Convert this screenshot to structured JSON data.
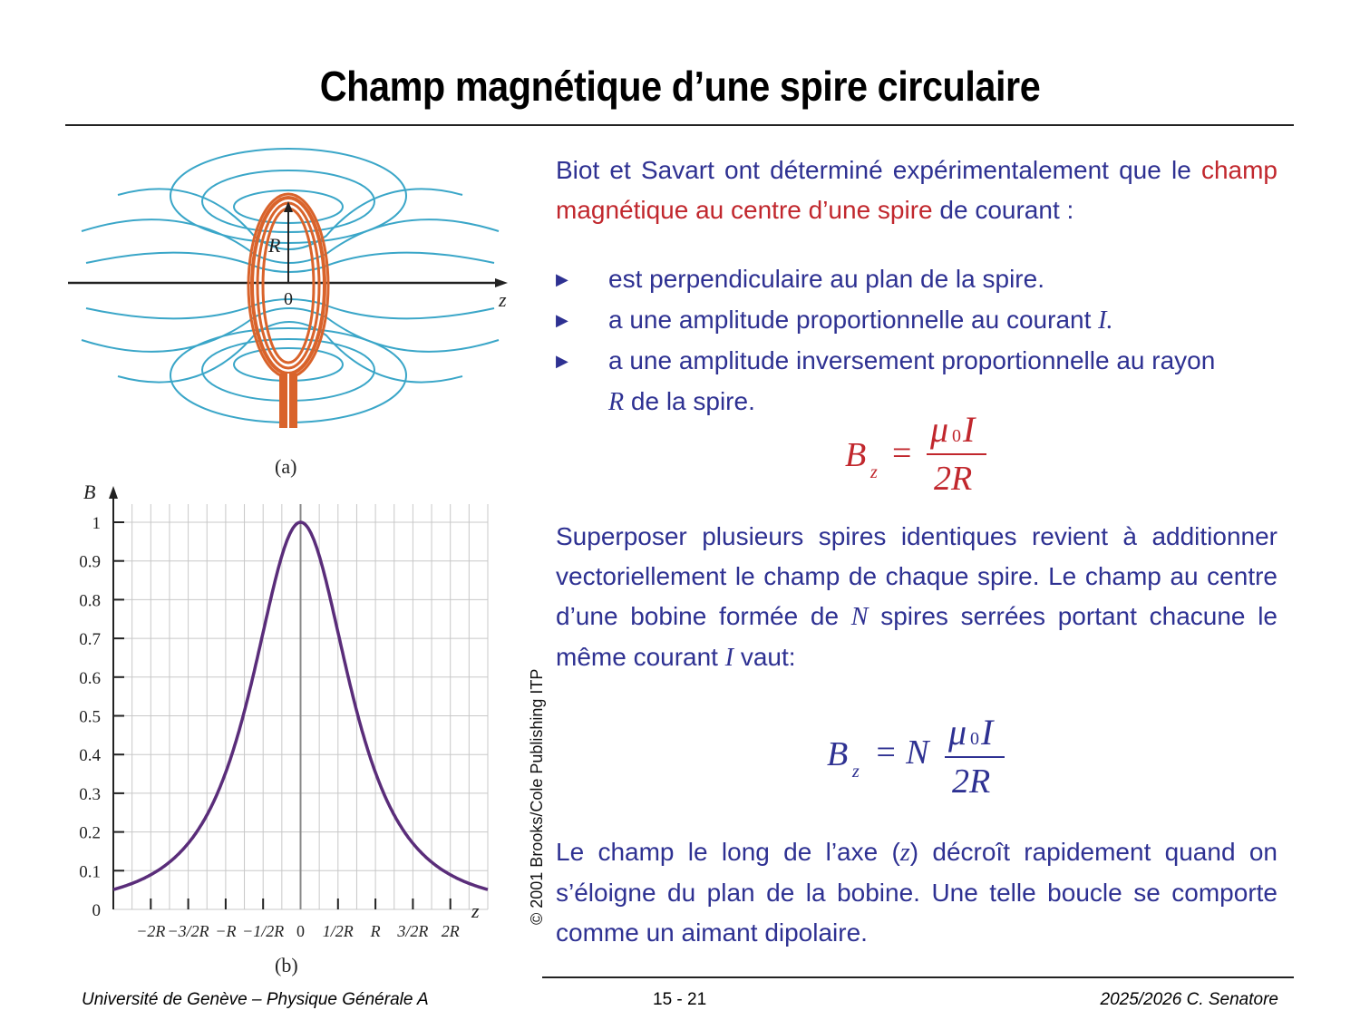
{
  "slide": {
    "title": "Champ magnétique d’une spire circulaire"
  },
  "text": {
    "intro_1": "Biot et Savart ont déterminé expérimentalement que le",
    "intro_red": "champ magnétique au centre d’une spire",
    "intro_2": " de courant :",
    "bullets": [
      {
        "text": "est perpendiculaire au plan de la spire.",
        "sym": ""
      },
      {
        "text": "a une amplitude proportionnelle au courant ",
        "sym": "I."
      },
      {
        "text": "a une amplitude inversement proportionnelle au rayon",
        "sym": ""
      }
    ],
    "bullet3_line2_sym": "R",
    "bullet3_line2_text": " de la spire.",
    "para2_1": "Superposer plusieurs spires identiques revient à additionner vectoriellement le champ de chaque spire. Le champ au centre d’une bobine formée de ",
    "para2_N": "N",
    "para2_2": " spires serrées portant chacune le même courant ",
    "para2_I": "I",
    "para2_3": " vaut:",
    "para3_1": "Le champ le long de l’axe (",
    "para3_z": "z",
    "para3_2": ") décroît rapidement quand on s’éloigne du plan de la bobine. Une telle boucle se comporte comme un aimant dipolaire."
  },
  "formula1": {
    "lhs": "B",
    "sub": "z",
    "eq": "=",
    "num": "μ",
    "num_sub": "0",
    "num_I": "I",
    "den": "2R",
    "color": "#c1272d"
  },
  "formula2": {
    "lhs": "B",
    "sub": "z",
    "eq": "= N",
    "num": "μ",
    "num_sub": "0",
    "num_I": "I",
    "den": "2R",
    "color": "#2e3192"
  },
  "figure_a": {
    "label": "(a)",
    "R_label": "R",
    "origin_label": "0",
    "axis_label": "z"
  },
  "chart_data": {
    "type": "line",
    "ylabel": "B",
    "xlabel": "z",
    "ylim": [
      0,
      1
    ],
    "xlim": [
      -2.5,
      2.5
    ],
    "y_ticks": [
      "0",
      "0.1",
      "0.2",
      "0.3",
      "0.4",
      "0.5",
      "0.6",
      "0.7",
      "0.8",
      "0.9",
      "1"
    ],
    "x_tick_values": [
      -2,
      -1.5,
      -1,
      -0.5,
      0,
      0.5,
      1,
      1.5,
      2
    ],
    "x_tick_labels": [
      "−2R",
      "−3/2R",
      "−R",
      "−1/2R",
      "0",
      "1/2R",
      "R",
      "3/2R",
      "2R"
    ],
    "function": "B = 1 / (1 + z²)^(3/2)",
    "x": [
      -2.5,
      -2.0,
      -1.5,
      -1.0,
      -0.5,
      0,
      0.5,
      1.0,
      1.5,
      2.0,
      2.5
    ],
    "y": [
      0.051,
      0.089,
      0.171,
      0.354,
      0.716,
      1.0,
      0.716,
      0.354,
      0.171,
      0.089,
      0.051
    ],
    "grid": true,
    "figure_label": "(b)",
    "curve_color": "#5a2d7a"
  },
  "credit": "© 2001 Brooks/Cole Publishing ITP",
  "footer": {
    "left": "Université de Genève – Physique Générale A",
    "center": "15 - 21",
    "right": "2025/2026  C. Senatore"
  },
  "colors": {
    "field_lines": "#3aa6c8",
    "coil": "#d9632b",
    "text_blue": "#2e3192",
    "text_red": "#c1272d"
  }
}
